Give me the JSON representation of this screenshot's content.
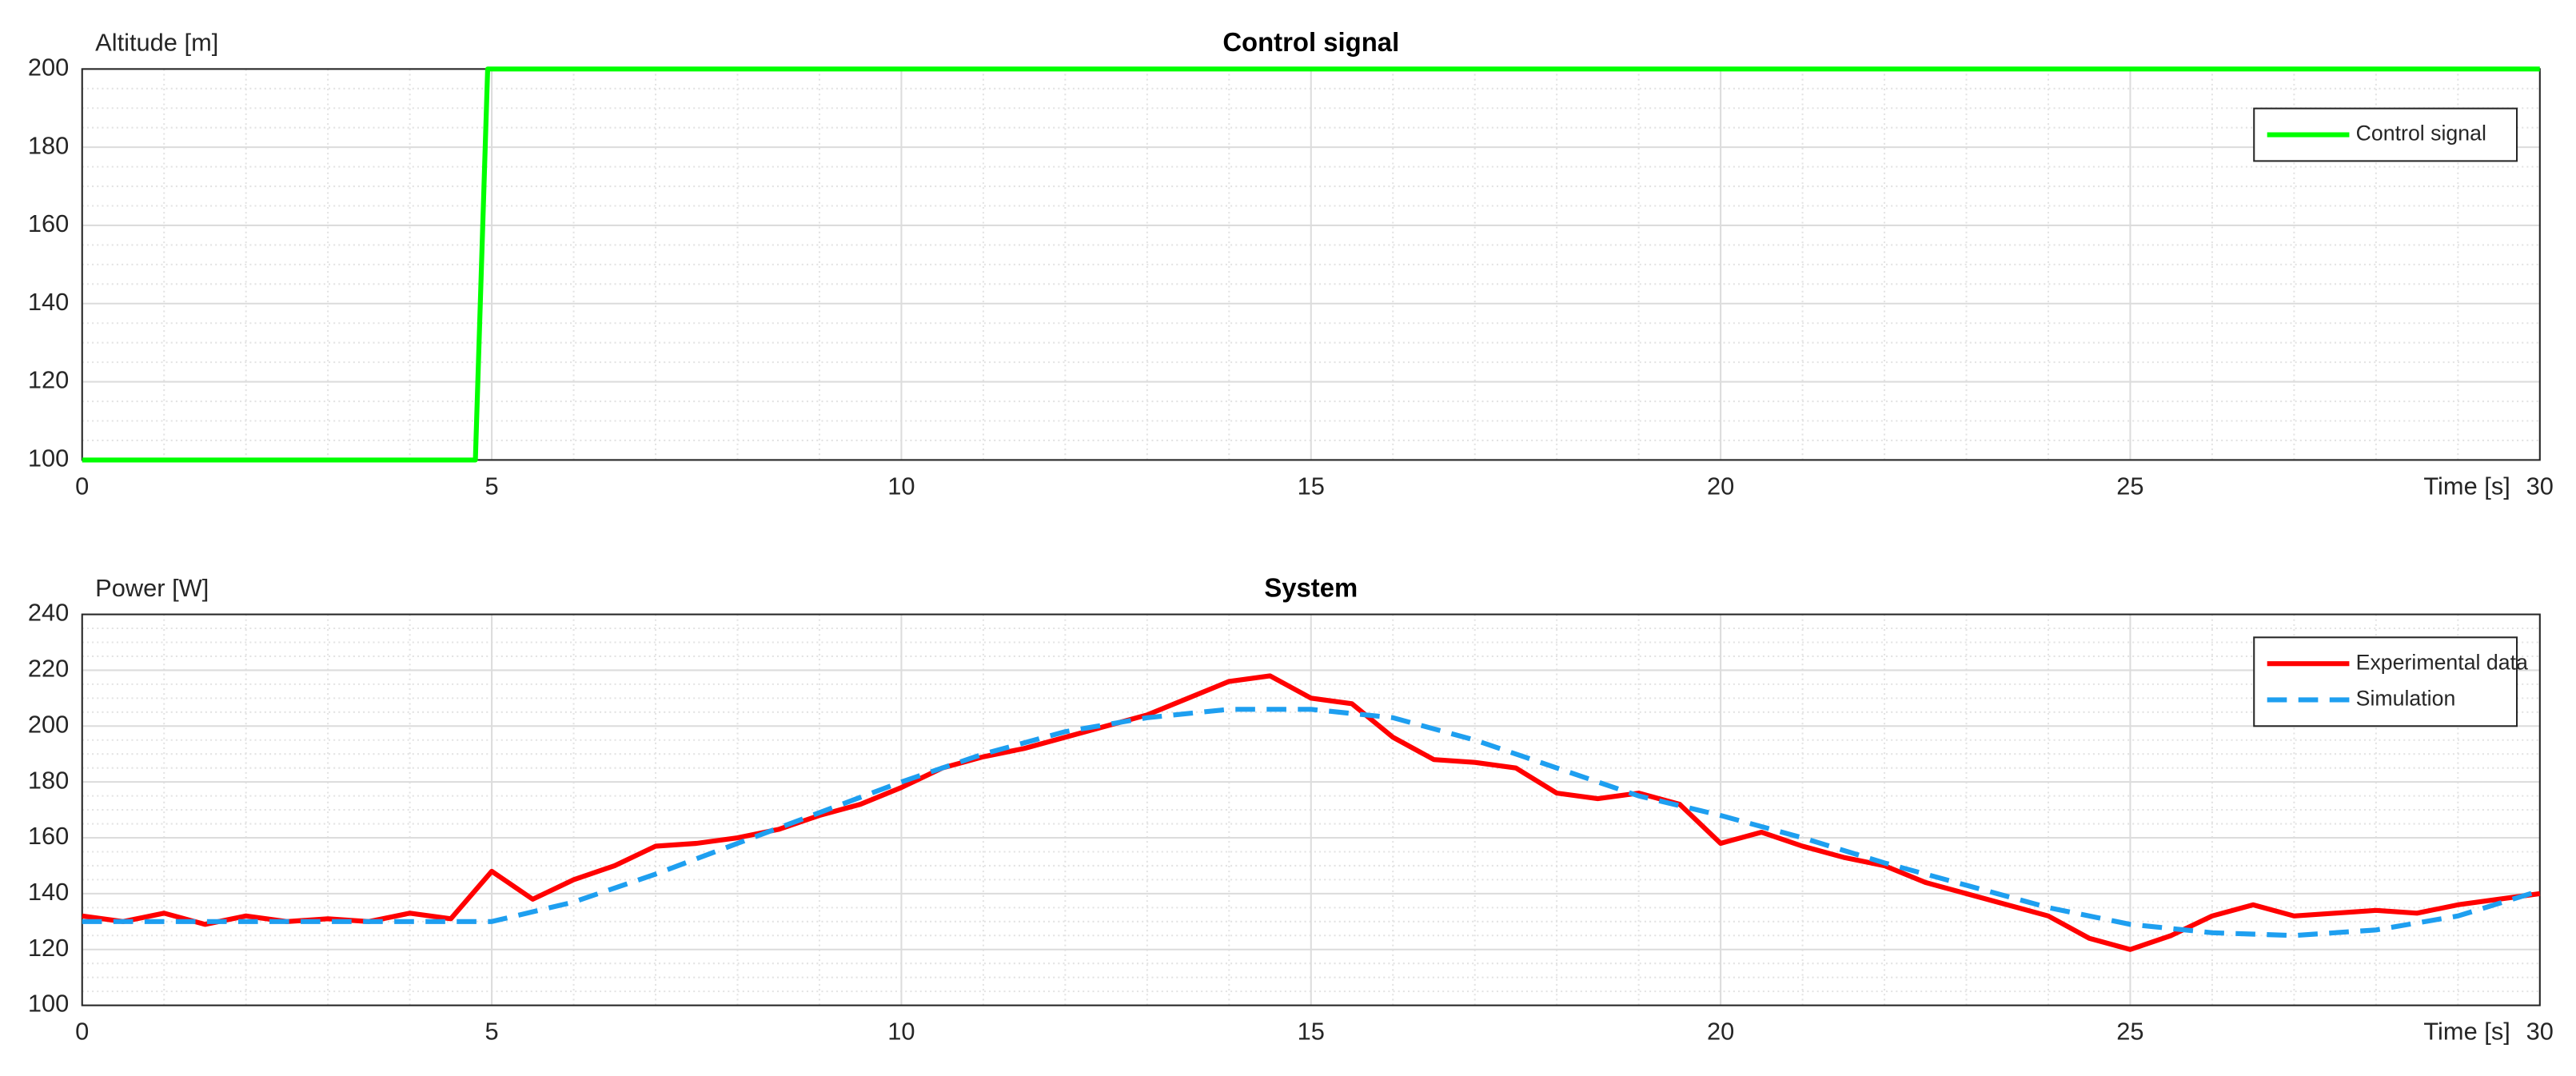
{
  "chart_data": [
    {
      "type": "line",
      "title": "Control signal",
      "ylabel": "Altitude [m]",
      "xlabel": "Time [s]",
      "xlim": [
        0,
        30
      ],
      "xticks": [
        0,
        5,
        10,
        15,
        20,
        25,
        30
      ],
      "ylim": [
        100,
        200
      ],
      "yticks": [
        100,
        120,
        140,
        160,
        180,
        200
      ],
      "grid": true,
      "minor_grid": true,
      "legend": "upper right",
      "series": [
        {
          "name": "Control signal",
          "color": "#00ff00",
          "linestyle": "solid",
          "x": [
            0,
            4.8,
            4.95,
            30
          ],
          "values": [
            100,
            100,
            200,
            200
          ]
        }
      ]
    },
    {
      "type": "line",
      "title": "System",
      "ylabel": "Power [W]",
      "xlabel": "Time [s]",
      "xlim": [
        0,
        30
      ],
      "xticks": [
        0,
        5,
        10,
        15,
        20,
        25,
        30
      ],
      "ylim": [
        100,
        240
      ],
      "yticks": [
        100,
        120,
        140,
        160,
        180,
        200,
        220,
        240
      ],
      "grid": true,
      "minor_grid": true,
      "legend": "upper right",
      "series": [
        {
          "name": "Experimental data",
          "color": "#ff0000",
          "linestyle": "solid",
          "x": [
            0,
            0.5,
            1,
            1.5,
            2,
            2.5,
            3,
            3.5,
            4,
            4.5,
            5,
            5.5,
            6,
            6.5,
            7,
            7.5,
            8,
            8.5,
            9,
            9.5,
            10,
            10.5,
            11,
            11.5,
            12,
            12.5,
            13,
            13.5,
            14,
            14.5,
            15,
            15.5,
            16,
            16.5,
            17,
            17.5,
            18,
            18.5,
            19,
            19.5,
            20,
            20.5,
            21,
            21.5,
            22,
            22.5,
            23,
            23.5,
            24,
            24.5,
            25,
            25.5,
            26,
            26.5,
            27,
            27.5,
            28,
            28.5,
            29,
            29.5,
            30
          ],
          "values": [
            132,
            130,
            133,
            129,
            132,
            130,
            131,
            130,
            133,
            131,
            148,
            138,
            145,
            150,
            157,
            158,
            160,
            163,
            168,
            172,
            178,
            185,
            189,
            192,
            196,
            200,
            204,
            210,
            216,
            218,
            210,
            208,
            196,
            188,
            187,
            185,
            176,
            174,
            176,
            172,
            158,
            162,
            157,
            153,
            150,
            144,
            140,
            136,
            132,
            124,
            120,
            125,
            132,
            136,
            132,
            133,
            134,
            133,
            136,
            138,
            140
          ]
        },
        {
          "name": "Simulation",
          "color": "#1e9ff0",
          "linestyle": "dashed",
          "x": [
            0,
            1,
            2,
            3,
            4,
            5,
            6,
            7,
            8,
            9,
            10,
            11,
            12,
            13,
            14,
            15,
            16,
            17,
            18,
            19,
            20,
            21,
            22,
            23,
            24,
            25,
            26,
            27,
            28,
            29,
            30
          ],
          "values": [
            130,
            130,
            130,
            130,
            130,
            130,
            137,
            147,
            158,
            169,
            180,
            190,
            198,
            203,
            206,
            206,
            203,
            195,
            185,
            175,
            168,
            160,
            151,
            143,
            135,
            129,
            126,
            125,
            127,
            132,
            141
          ]
        }
      ]
    }
  ]
}
